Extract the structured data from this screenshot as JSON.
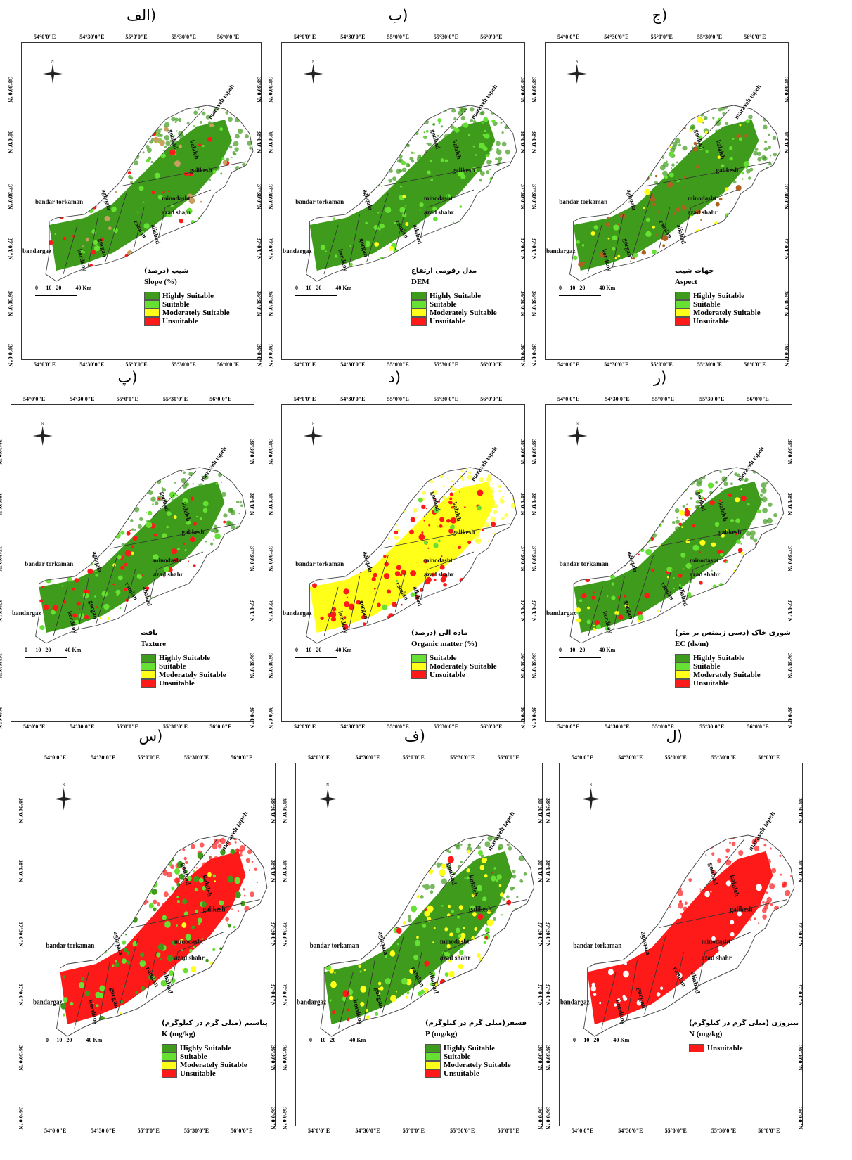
{
  "lon_ticks": [
    "54°0'0\"E",
    "54°30'0\"E",
    "55°0'0\"E",
    "55°30'0\"E",
    "56°0'0\"E"
  ],
  "lat_ticks": [
    "38°30'0\"N",
    "38°0'0\"N",
    "37°30'0\"N",
    "37°0'0\"N",
    "36°30'0\"N",
    "36°0'0\"N"
  ],
  "north_label": "N",
  "scale_bar": {
    "labels": [
      "0",
      "10",
      "20",
      "40 Km"
    ]
  },
  "towns": [
    "bandar torkaman",
    "bandargaz",
    "kordkoy",
    "gorgan",
    "aghqala",
    "ramian",
    "aliabad",
    "azad shahr",
    "minodasht",
    "galikesh",
    "kalaleh",
    "maraveh tapeh",
    "gonbad"
  ],
  "colors": {
    "highly": "#3f9b1b",
    "suitable": "#66e033",
    "moderate": "#ffff1a",
    "unsuitable": "#ff1a1a"
  },
  "panels": [
    {
      "letter": "الف)",
      "title_fa": "(درصد) شیب",
      "title_en": "Slope (%)",
      "legend": [
        "Highly Suitable",
        "Suitable",
        "Moderately Suitable",
        "Unsuitable"
      ]
    },
    {
      "letter": "ب)",
      "title_fa": "مدل رقومی ارتفاع",
      "title_en": "DEM",
      "legend": [
        "Highly Suitable",
        "Suitable",
        "Moderately Suitable",
        "Unsuitable"
      ]
    },
    {
      "letter": "ج)",
      "title_fa": "جهات شیب",
      "title_en": "Aspect",
      "legend": [
        "Highly Suitable",
        "Suitable",
        "Moderately Suitable",
        "Unsuitable"
      ]
    },
    {
      "letter": "پ)",
      "title_fa": "بافت",
      "title_en": "Texture",
      "legend": [
        "Highly Suitable",
        "Suitable",
        "Moderately Suitable",
        "Unsuitable"
      ]
    },
    {
      "letter": "د)",
      "title_fa": "(درصد) ماده الی",
      "title_en": "Organic matter (%)",
      "legend": [
        "Suitable",
        "Moderately Suitable",
        "Unsuitable"
      ]
    },
    {
      "letter": "ر)",
      "title_fa": "(دسی زیمنس بر متر) شوری خاک",
      "title_en": "EC (ds/m)",
      "legend": [
        "Highly Suitable",
        "Suitable",
        "Moderately Suitable",
        "Unsuitable"
      ]
    },
    {
      "letter": "س)",
      "title_fa": "(میلی گرم در کیلوگرم) پتاسیم",
      "title_en": "K (mg/kg)",
      "legend": [
        "Highly Suitable",
        "Suitable",
        "Moderately Suitable",
        "Unsuitable"
      ]
    },
    {
      "letter": "ف)",
      "title_fa": "(میلی گرم در کیلوگرم)فسفر",
      "title_en": "P (mg/kg)",
      "legend": [
        "Highly Suitable",
        "Suitable",
        "Moderately Suitable",
        "Unsuitable"
      ]
    },
    {
      "letter": "ل)",
      "title_fa": "(میلی گرم در کیلوگرم) نیتروژن",
      "title_en": "N (mg/kg)",
      "legend": [
        "Unsuitable"
      ]
    }
  ]
}
